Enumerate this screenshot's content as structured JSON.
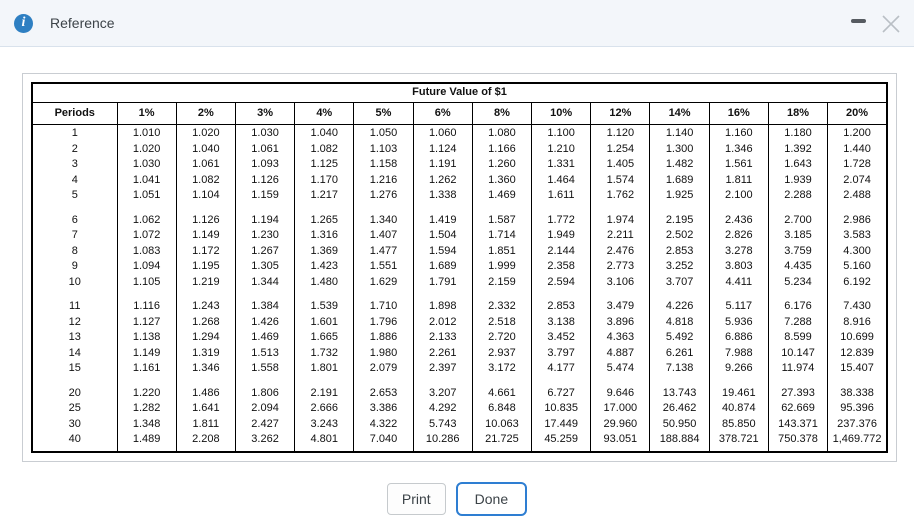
{
  "window": {
    "title": "Reference",
    "icons": {
      "info": "info-icon",
      "minimize": "minimize-icon",
      "close": "close-icon"
    },
    "info_glyph": "i",
    "accent_blue": "#2e7fc2"
  },
  "table": {
    "title": "Future Value of $1",
    "columns": [
      "Periods",
      "1%",
      "2%",
      "3%",
      "4%",
      "5%",
      "6%",
      "8%",
      "10%",
      "12%",
      "14%",
      "16%",
      "18%",
      "20%"
    ],
    "groups": [
      [
        [
          "1",
          "1.010",
          "1.020",
          "1.030",
          "1.040",
          "1.050",
          "1.060",
          "1.080",
          "1.100",
          "1.120",
          "1.140",
          "1.160",
          "1.180",
          "1.200"
        ],
        [
          "2",
          "1.020",
          "1.040",
          "1.061",
          "1.082",
          "1.103",
          "1.124",
          "1.166",
          "1.210",
          "1.254",
          "1.300",
          "1.346",
          "1.392",
          "1.440"
        ],
        [
          "3",
          "1.030",
          "1.061",
          "1.093",
          "1.125",
          "1.158",
          "1.191",
          "1.260",
          "1.331",
          "1.405",
          "1.482",
          "1.561",
          "1.643",
          "1.728"
        ],
        [
          "4",
          "1.041",
          "1.082",
          "1.126",
          "1.170",
          "1.216",
          "1.262",
          "1.360",
          "1.464",
          "1.574",
          "1.689",
          "1.811",
          "1.939",
          "2.074"
        ],
        [
          "5",
          "1.051",
          "1.104",
          "1.159",
          "1.217",
          "1.276",
          "1.338",
          "1.469",
          "1.611",
          "1.762",
          "1.925",
          "2.100",
          "2.288",
          "2.488"
        ]
      ],
      [
        [
          "6",
          "1.062",
          "1.126",
          "1.194",
          "1.265",
          "1.340",
          "1.419",
          "1.587",
          "1.772",
          "1.974",
          "2.195",
          "2.436",
          "2.700",
          "2.986"
        ],
        [
          "7",
          "1.072",
          "1.149",
          "1.230",
          "1.316",
          "1.407",
          "1.504",
          "1.714",
          "1.949",
          "2.211",
          "2.502",
          "2.826",
          "3.185",
          "3.583"
        ],
        [
          "8",
          "1.083",
          "1.172",
          "1.267",
          "1.369",
          "1.477",
          "1.594",
          "1.851",
          "2.144",
          "2.476",
          "2.853",
          "3.278",
          "3.759",
          "4.300"
        ],
        [
          "9",
          "1.094",
          "1.195",
          "1.305",
          "1.423",
          "1.551",
          "1.689",
          "1.999",
          "2.358",
          "2.773",
          "3.252",
          "3.803",
          "4.435",
          "5.160"
        ],
        [
          "10",
          "1.105",
          "1.219",
          "1.344",
          "1.480",
          "1.629",
          "1.791",
          "2.159",
          "2.594",
          "3.106",
          "3.707",
          "4.411",
          "5.234",
          "6.192"
        ]
      ],
      [
        [
          "11",
          "1.116",
          "1.243",
          "1.384",
          "1.539",
          "1.710",
          "1.898",
          "2.332",
          "2.853",
          "3.479",
          "4.226",
          "5.117",
          "6.176",
          "7.430"
        ],
        [
          "12",
          "1.127",
          "1.268",
          "1.426",
          "1.601",
          "1.796",
          "2.012",
          "2.518",
          "3.138",
          "3.896",
          "4.818",
          "5.936",
          "7.288",
          "8.916"
        ],
        [
          "13",
          "1.138",
          "1.294",
          "1.469",
          "1.665",
          "1.886",
          "2.133",
          "2.720",
          "3.452",
          "4.363",
          "5.492",
          "6.886",
          "8.599",
          "10.699"
        ],
        [
          "14",
          "1.149",
          "1.319",
          "1.513",
          "1.732",
          "1.980",
          "2.261",
          "2.937",
          "3.797",
          "4.887",
          "6.261",
          "7.988",
          "10.147",
          "12.839"
        ],
        [
          "15",
          "1.161",
          "1.346",
          "1.558",
          "1.801",
          "2.079",
          "2.397",
          "3.172",
          "4.177",
          "5.474",
          "7.138",
          "9.266",
          "11.974",
          "15.407"
        ]
      ],
      [
        [
          "20",
          "1.220",
          "1.486",
          "1.806",
          "2.191",
          "2.653",
          "3.207",
          "4.661",
          "6.727",
          "9.646",
          "13.743",
          "19.461",
          "27.393",
          "38.338"
        ],
        [
          "25",
          "1.282",
          "1.641",
          "2.094",
          "2.666",
          "3.386",
          "4.292",
          "6.848",
          "10.835",
          "17.000",
          "26.462",
          "40.874",
          "62.669",
          "95.396"
        ],
        [
          "30",
          "1.348",
          "1.811",
          "2.427",
          "3.243",
          "4.322",
          "5.743",
          "10.063",
          "17.449",
          "29.960",
          "50.950",
          "85.850",
          "143.371",
          "237.376"
        ],
        [
          "40",
          "1.489",
          "2.208",
          "3.262",
          "4.801",
          "7.040",
          "10.286",
          "21.725",
          "45.259",
          "93.051",
          "188.884",
          "378.721",
          "750.378",
          "1,469.772"
        ]
      ]
    ]
  },
  "buttons": {
    "print": "Print",
    "done": "Done"
  }
}
